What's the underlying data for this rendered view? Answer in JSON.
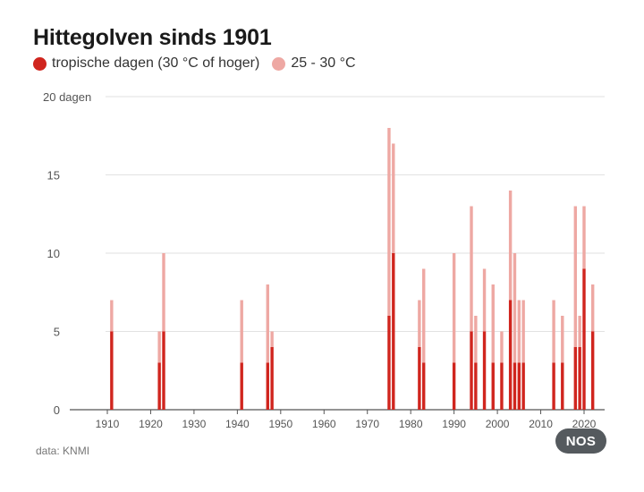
{
  "title": "Hittegolven sinds 1901",
  "legend": {
    "items": [
      {
        "label": "tropische dagen (30 °C of hoger)",
        "color": "#d0251e"
      },
      {
        "label": "25 - 30 °C",
        "color": "#eea8a3"
      }
    ]
  },
  "source": "data: KNMI",
  "logo": "NOS",
  "chart_data": {
    "type": "bar",
    "stacked": true,
    "x_axis": {
      "range": [
        1901,
        2023
      ],
      "ticks": [
        1910,
        1920,
        1930,
        1940,
        1950,
        1960,
        1970,
        1980,
        1990,
        2000,
        2010,
        2020
      ]
    },
    "y_axis": {
      "range": [
        0,
        20
      ],
      "ticks": [
        0,
        5,
        10,
        15,
        20
      ],
      "tick_labels": [
        "0",
        "5",
        "10",
        "15",
        "20 dagen"
      ]
    },
    "grid": true,
    "series_colors": {
      "tropical": "#d0251e",
      "warm": "#eea8a3"
    },
    "bars": [
      {
        "year": 1911,
        "tropical": 5,
        "total": 7
      },
      {
        "year": 1922,
        "tropical": 3,
        "total": 5
      },
      {
        "year": 1923,
        "tropical": 5,
        "total": 10
      },
      {
        "year": 1941,
        "tropical": 3,
        "total": 7
      },
      {
        "year": 1947,
        "tropical": 3,
        "total": 8
      },
      {
        "year": 1948,
        "tropical": 4,
        "total": 5
      },
      {
        "year": 1975,
        "tropical": 6,
        "total": 18
      },
      {
        "year": 1976,
        "tropical": 10,
        "total": 17
      },
      {
        "year": 1982,
        "tropical": 4,
        "total": 7
      },
      {
        "year": 1983,
        "tropical": 3,
        "total": 9
      },
      {
        "year": 1990,
        "tropical": 3,
        "total": 10
      },
      {
        "year": 1994,
        "tropical": 5,
        "total": 13
      },
      {
        "year": 1995,
        "tropical": 3,
        "total": 6
      },
      {
        "year": 1997,
        "tropical": 5,
        "total": 9
      },
      {
        "year": 1999,
        "tropical": 3,
        "total": 8
      },
      {
        "year": 2001,
        "tropical": 3,
        "total": 5
      },
      {
        "year": 2003,
        "tropical": 7,
        "total": 14
      },
      {
        "year": 2004,
        "tropical": 3,
        "total": 10
      },
      {
        "year": 2005,
        "tropical": 3,
        "total": 7
      },
      {
        "year": 2006,
        "tropical": 3,
        "total": 7
      },
      {
        "year": 2013,
        "tropical": 3,
        "total": 7
      },
      {
        "year": 2015,
        "tropical": 3,
        "total": 6
      },
      {
        "year": 2018,
        "tropical": 4,
        "total": 13
      },
      {
        "year": 2019,
        "tropical": 4,
        "total": 6
      },
      {
        "year": 2020,
        "tropical": 9,
        "total": 13
      },
      {
        "year": 2022,
        "tropical": 5,
        "total": 8
      }
    ]
  }
}
